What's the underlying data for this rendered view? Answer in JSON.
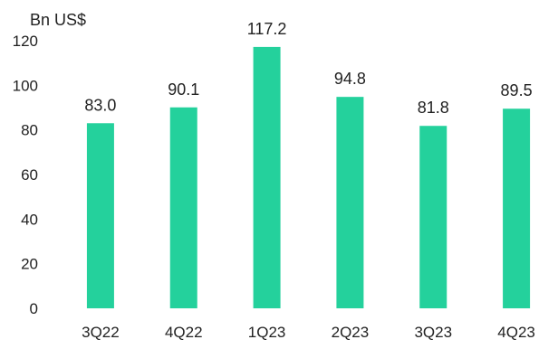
{
  "colors": {
    "bar": "#24D19C",
    "text": "#222222",
    "background": "#ffffff"
  },
  "chart_data": {
    "type": "bar",
    "unit_label": "Bn US$",
    "categories": [
      "3Q22",
      "4Q22",
      "1Q23",
      "2Q23",
      "3Q23",
      "4Q23"
    ],
    "values": [
      83.0,
      90.1,
      117.2,
      94.8,
      81.8,
      89.5
    ],
    "data_labels": [
      "83.0",
      "90.1",
      "117.2",
      "94.8",
      "81.8",
      "89.5"
    ],
    "y_ticks": [
      0,
      20,
      40,
      60,
      80,
      100,
      120
    ],
    "ylim": [
      0,
      120
    ],
    "grid": false,
    "legend": "none"
  }
}
